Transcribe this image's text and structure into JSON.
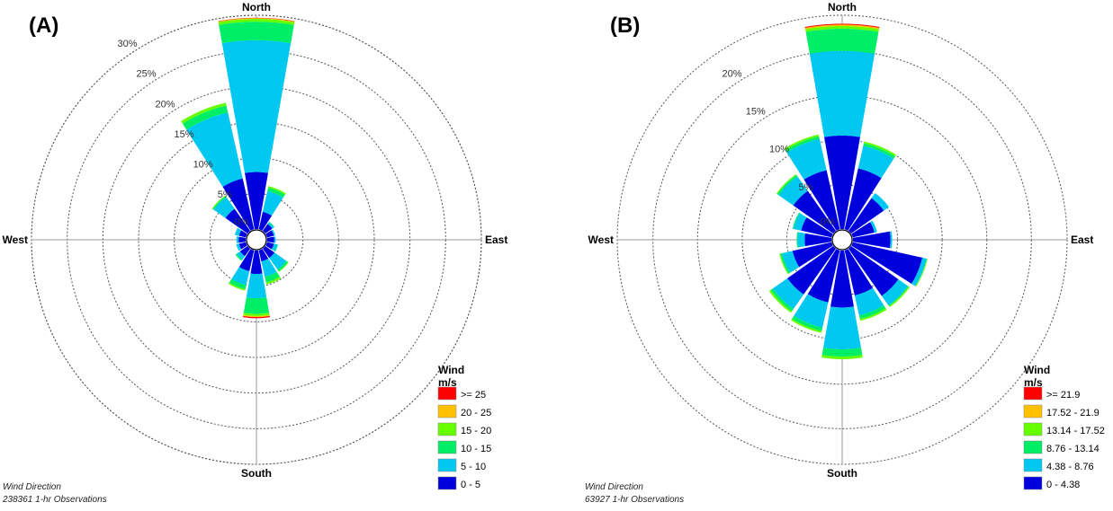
{
  "colors": {
    "bin_colors": [
      "#0000dd",
      "#00c8f0",
      "#00ee66",
      "#66ff00",
      "#ffc000",
      "#ff0000"
    ],
    "grid": "#555555",
    "axis": "#999999",
    "text": "#000000"
  },
  "chart_data": [
    {
      "panel_label": "(A)",
      "type": "wind-rose",
      "directions": [
        "N",
        "NNE",
        "NE",
        "ENE",
        "E",
        "ESE",
        "SE",
        "SSE",
        "S",
        "SSW",
        "SW",
        "WSW",
        "W",
        "WNW",
        "NW",
        "NNW"
      ],
      "compass_labels": {
        "north": "North",
        "east": "East",
        "south": "South",
        "west": "West"
      },
      "radial_max": 30,
      "radial_ticks": [
        0,
        5,
        10,
        15,
        20,
        25,
        30
      ],
      "radial_tick_labels": [
        "0%",
        "5%",
        "10%",
        "15%",
        "20%",
        "25%",
        "30%"
      ],
      "radial_label_angle_deg": -32,
      "legend": {
        "title": "Wind",
        "subtitle": "m/s",
        "bins": [
          "0 - 5",
          "5 - 10",
          "10 - 15",
          "15 - 20",
          "20 - 25",
          ">= 25"
        ]
      },
      "footer": {
        "line1": "Wind Direction",
        "line2": "238361 1-hr Observations"
      },
      "series": [
        {
          "name": "0 - 5",
          "values": [
            8.0,
            2.5,
            1.2,
            1.0,
            1.0,
            1.0,
            1.6,
            1.6,
            3.3,
            3.0,
            1.3,
            1.0,
            1.0,
            1.0,
            3.8,
            7.3
          ]
        },
        {
          "name": "5 - 10",
          "values": [
            18.5,
            3.0,
            0.3,
            0.2,
            0.2,
            0.5,
            2.0,
            2.2,
            3.4,
            2.0,
            0.6,
            0.4,
            0.3,
            0.6,
            2.0,
            9.5
          ]
        },
        {
          "name": "10 - 15",
          "values": [
            2.6,
            0.5,
            0.1,
            0.0,
            0.0,
            0.1,
            0.3,
            0.8,
            2.2,
            0.6,
            0.2,
            0.0,
            0.0,
            0.0,
            0.2,
            1.0
          ]
        },
        {
          "name": "15 - 20",
          "values": [
            0.4,
            0.2,
            0.0,
            0.0,
            0.0,
            0.0,
            0.1,
            0.3,
            0.3,
            0.2,
            0.0,
            0.0,
            0.0,
            0.0,
            0.1,
            0.4
          ]
        },
        {
          "name": "20 - 25",
          "values": [
            0.1,
            0.0,
            0.0,
            0.0,
            0.0,
            0.0,
            0.0,
            0.0,
            0.15,
            0.0,
            0.0,
            0.0,
            0.0,
            0.0,
            0.0,
            0.0
          ]
        },
        {
          "name": ">= 25",
          "values": [
            0.05,
            0.0,
            0.0,
            0.0,
            0.0,
            0.0,
            0.0,
            0.0,
            0.15,
            0.0,
            0.0,
            0.0,
            0.0,
            0.0,
            0.0,
            0.0
          ]
        }
      ]
    },
    {
      "panel_label": "(B)",
      "type": "wind-rose",
      "directions": [
        "N",
        "NNE",
        "NE",
        "ENE",
        "E",
        "ESE",
        "SE",
        "SSE",
        "S",
        "SSW",
        "SW",
        "WSW",
        "W",
        "WNW",
        "NW",
        "NNW"
      ],
      "compass_labels": {
        "north": "North",
        "east": "East",
        "south": "South",
        "west": "West"
      },
      "radial_max": 24,
      "radial_ticks": [
        0,
        5,
        10,
        15,
        20
      ],
      "radial_tick_labels": [
        "0%",
        "5%",
        "10%",
        "15%",
        "20%"
      ],
      "radial_label_angle_deg": -32,
      "legend": {
        "title": "Wind",
        "subtitle": "m/s",
        "bins": [
          "0 - 4.38",
          "4.38 - 8.76",
          "8.76 - 13.14",
          "13.14 - 17.52",
          "17.52 - 21.9",
          ">= 21.9"
        ]
      },
      "footer": {
        "line1": "Wind Direction",
        "line2": "63927 1-hr Observations"
      },
      "series": [
        {
          "name": "0 - 4.38",
          "values": [
            10.5,
            7.0,
            4.5,
            2.5,
            4.2,
            8.0,
            6.5,
            5.2,
            6.4,
            6.0,
            6.3,
            4.5,
            3.0,
            3.5,
            5.5,
            6.8
          ]
        },
        {
          "name": "4.38 - 8.76",
          "values": [
            9.5,
            2.6,
            0.7,
            0.3,
            0.2,
            0.5,
            1.3,
            2.3,
            4.7,
            2.9,
            2.0,
            1.2,
            0.8,
            0.9,
            2.0,
            3.6
          ]
        },
        {
          "name": "8.76 - 13.14",
          "values": [
            2.5,
            0.3,
            0.0,
            0.0,
            0.0,
            0.0,
            0.1,
            0.4,
            0.8,
            0.4,
            0.3,
            0.2,
            0.1,
            0.1,
            0.2,
            0.3
          ]
        },
        {
          "name": "13.14 - 17.52",
          "values": [
            0.3,
            0.2,
            0.0,
            0.0,
            0.0,
            0.1,
            0.15,
            0.2,
            0.3,
            0.2,
            0.2,
            0.1,
            0.0,
            0.0,
            0.1,
            0.2
          ]
        },
        {
          "name": "17.52 - 21.9",
          "values": [
            0.15,
            0.0,
            0.0,
            0.0,
            0.0,
            0.0,
            0.0,
            0.0,
            0.0,
            0.0,
            0.0,
            0.0,
            0.0,
            0.0,
            0.0,
            0.0
          ]
        },
        {
          "name": ">= 21.9",
          "values": [
            0.1,
            0.0,
            0.0,
            0.0,
            0.0,
            0.0,
            0.0,
            0.0,
            0.0,
            0.0,
            0.0,
            0.0,
            0.0,
            0.0,
            0.0,
            0.0
          ]
        }
      ]
    }
  ]
}
